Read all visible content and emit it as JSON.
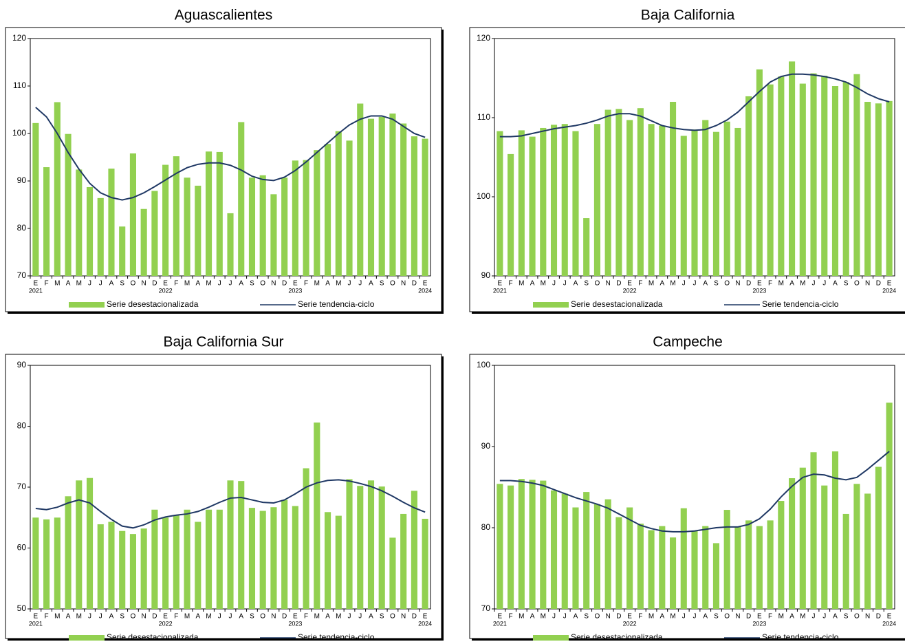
{
  "chart_data": [
    {
      "type": "bar",
      "title": "Aguascalientes",
      "categories": [
        "E",
        "F",
        "M",
        "A",
        "M",
        "J",
        "J",
        "A",
        "S",
        "O",
        "N",
        "D",
        "E",
        "F",
        "M",
        "A",
        "M",
        "J",
        "J",
        "A",
        "S",
        "O",
        "N",
        "D",
        "E",
        "F",
        "M",
        "A",
        "M",
        "J",
        "J",
        "A",
        "S",
        "O",
        "N",
        "D",
        "E"
      ],
      "years": [
        "2021",
        null,
        null,
        null,
        null,
        null,
        null,
        null,
        null,
        null,
        null,
        null,
        "2022",
        null,
        null,
        null,
        null,
        null,
        null,
        null,
        null,
        null,
        null,
        null,
        "2023",
        null,
        null,
        null,
        null,
        null,
        null,
        null,
        null,
        null,
        null,
        null,
        "2024"
      ],
      "ylim": [
        70,
        120
      ],
      "yticks": [
        70,
        80,
        90,
        100,
        110,
        120
      ],
      "series": [
        {
          "name": "Serie desestacionalizada",
          "type": "bar",
          "color": "#92d050",
          "values": [
            102.2,
            92.9,
            106.6,
            99.9,
            92.4,
            88.7,
            86.4,
            92.6,
            80.4,
            95.8,
            84.1,
            87.9,
            93.4,
            95.2,
            90.7,
            89.0,
            96.2,
            96.1,
            83.2,
            102.4,
            90.7,
            91.2,
            87.2,
            90.7,
            94.3,
            94.4,
            96.5,
            97.8,
            100.5,
            98.5,
            106.3,
            103.1,
            103.5,
            104.2,
            102.1,
            99.4,
            98.9
          ]
        },
        {
          "name": "Serie tendencia-ciclo",
          "type": "line",
          "color": "#1f3864",
          "values": [
            105.5,
            103.5,
            100.0,
            96.0,
            92.5,
            89.5,
            87.5,
            86.5,
            86.0,
            86.5,
            87.5,
            88.8,
            90.2,
            91.6,
            92.8,
            93.5,
            93.8,
            93.8,
            93.3,
            92.3,
            91.0,
            90.3,
            90.1,
            90.8,
            92.2,
            94.0,
            96.0,
            98.0,
            100.0,
            101.8,
            103.0,
            103.7,
            103.7,
            103.0,
            101.5,
            100.0,
            99.2
          ]
        }
      ]
    },
    {
      "type": "bar",
      "title": "Baja California",
      "categories": [
        "E",
        "F",
        "M",
        "A",
        "M",
        "J",
        "J",
        "A",
        "S",
        "O",
        "N",
        "D",
        "E",
        "F",
        "M",
        "A",
        "M",
        "J",
        "J",
        "A",
        "S",
        "O",
        "N",
        "D",
        "E",
        "F",
        "M",
        "A",
        "M",
        "J",
        "J",
        "A",
        "S",
        "O",
        "N",
        "D",
        "E"
      ],
      "years": [
        "2021",
        null,
        null,
        null,
        null,
        null,
        null,
        null,
        null,
        null,
        null,
        null,
        "2022",
        null,
        null,
        null,
        null,
        null,
        null,
        null,
        null,
        null,
        null,
        null,
        "2023",
        null,
        null,
        null,
        null,
        null,
        null,
        null,
        null,
        null,
        null,
        null,
        "2024"
      ],
      "ylim": [
        90,
        120
      ],
      "yticks": [
        90,
        100,
        110,
        120
      ],
      "series": [
        {
          "name": "Serie desestacionalizada",
          "type": "bar",
          "color": "#92d050",
          "values": [
            108.3,
            105.4,
            108.4,
            107.6,
            108.7,
            109.1,
            109.2,
            108.3,
            97.3,
            109.2,
            111.0,
            111.1,
            109.7,
            111.2,
            109.2,
            109.0,
            112.0,
            107.7,
            108.5,
            109.7,
            108.2,
            109.5,
            108.7,
            112.7,
            116.1,
            114.2,
            115.2,
            117.1,
            114.3,
            115.6,
            115.3,
            114.0,
            114.5,
            115.5,
            112.0,
            111.8,
            112.1
          ]
        },
        {
          "name": "Serie tendencia-ciclo",
          "type": "line",
          "color": "#1f3864",
          "values": [
            107.6,
            107.6,
            107.7,
            108.0,
            108.3,
            108.6,
            108.8,
            109.0,
            109.3,
            109.7,
            110.2,
            110.5,
            110.5,
            110.2,
            109.6,
            109.0,
            108.7,
            108.5,
            108.4,
            108.5,
            109.0,
            109.7,
            110.7,
            112.0,
            113.3,
            114.5,
            115.2,
            115.5,
            115.5,
            115.4,
            115.2,
            114.9,
            114.5,
            113.8,
            113.0,
            112.4,
            112.0
          ]
        }
      ]
    },
    {
      "type": "bar",
      "title": "Baja California Sur",
      "categories": [
        "E",
        "F",
        "M",
        "A",
        "M",
        "J",
        "J",
        "A",
        "S",
        "O",
        "N",
        "D",
        "E",
        "F",
        "M",
        "A",
        "M",
        "J",
        "J",
        "A",
        "S",
        "O",
        "N",
        "D",
        "E",
        "F",
        "M",
        "A",
        "M",
        "J",
        "J",
        "A",
        "S",
        "O",
        "N",
        "D",
        "E"
      ],
      "years": [
        "2021",
        null,
        null,
        null,
        null,
        null,
        null,
        null,
        null,
        null,
        null,
        null,
        "2022",
        null,
        null,
        null,
        null,
        null,
        null,
        null,
        null,
        null,
        null,
        null,
        "2023",
        null,
        null,
        null,
        null,
        null,
        null,
        null,
        null,
        null,
        null,
        null,
        "2024"
      ],
      "ylim": [
        50,
        90
      ],
      "yticks": [
        50,
        60,
        70,
        80,
        90
      ],
      "series": [
        {
          "name": "Serie desestacionalizada",
          "type": "bar",
          "color": "#92d050",
          "values": [
            65.0,
            64.7,
            65.0,
            68.5,
            71.1,
            71.5,
            63.9,
            64.3,
            62.8,
            62.3,
            63.2,
            66.3,
            65.0,
            65.4,
            66.3,
            64.3,
            66.3,
            66.3,
            71.1,
            71.0,
            66.6,
            66.1,
            66.7,
            67.9,
            66.9,
            73.1,
            80.6,
            65.9,
            65.3,
            71.3,
            70.2,
            71.1,
            70.1,
            61.7,
            65.6,
            69.4,
            64.8
          ]
        },
        {
          "name": "Serie tendencia-ciclo",
          "type": "line",
          "color": "#1f3864",
          "values": [
            66.5,
            66.3,
            66.7,
            67.4,
            67.9,
            67.4,
            66.0,
            64.7,
            63.6,
            63.3,
            63.8,
            64.6,
            65.1,
            65.4,
            65.6,
            66.0,
            66.7,
            67.5,
            68.2,
            68.3,
            67.9,
            67.5,
            67.4,
            67.9,
            68.9,
            70.0,
            70.7,
            71.1,
            71.2,
            71.0,
            70.6,
            70.1,
            69.4,
            68.5,
            67.5,
            66.6,
            65.9
          ]
        }
      ]
    },
    {
      "type": "bar",
      "title": "Campeche",
      "categories": [
        "E",
        "F",
        "M",
        "A",
        "M",
        "J",
        "J",
        "A",
        "S",
        "O",
        "N",
        "D",
        "E",
        "F",
        "M",
        "A",
        "M",
        "J",
        "J",
        "A",
        "S",
        "O",
        "N",
        "D",
        "E",
        "F",
        "M",
        "A",
        "M",
        "J",
        "J",
        "A",
        "S",
        "O",
        "N",
        "D",
        "E"
      ],
      "years": [
        "2021",
        null,
        null,
        null,
        null,
        null,
        null,
        null,
        null,
        null,
        null,
        null,
        "2022",
        null,
        null,
        null,
        null,
        null,
        null,
        null,
        null,
        null,
        null,
        null,
        "2023",
        null,
        null,
        null,
        null,
        null,
        null,
        null,
        null,
        null,
        null,
        null,
        "2024"
      ],
      "ylim": [
        70,
        100
      ],
      "yticks": [
        70,
        80,
        90,
        100
      ],
      "series": [
        {
          "name": "Serie desestacionalizada",
          "type": "bar",
          "color": "#92d050",
          "values": [
            85.4,
            85.2,
            86.0,
            85.9,
            85.8,
            84.6,
            84.2,
            82.5,
            84.4,
            82.9,
            83.5,
            81.3,
            82.5,
            80.5,
            79.7,
            80.2,
            78.8,
            82.4,
            79.6,
            80.2,
            78.1,
            82.2,
            80.1,
            80.9,
            80.2,
            80.9,
            83.3,
            86.1,
            87.4,
            89.3,
            85.2,
            89.4,
            81.7,
            85.4,
            84.2,
            87.5,
            95.4
          ]
        },
        {
          "name": "Serie tendencia-ciclo",
          "type": "line",
          "color": "#1f3864",
          "values": [
            85.8,
            85.8,
            85.7,
            85.5,
            85.2,
            84.7,
            84.2,
            83.7,
            83.3,
            82.9,
            82.4,
            81.7,
            81.0,
            80.3,
            79.9,
            79.6,
            79.5,
            79.5,
            79.6,
            79.8,
            80.0,
            80.1,
            80.1,
            80.4,
            81.1,
            82.3,
            83.8,
            85.1,
            86.2,
            86.6,
            86.5,
            86.1,
            85.9,
            86.2,
            87.2,
            88.3,
            89.4
          ]
        }
      ]
    }
  ]
}
